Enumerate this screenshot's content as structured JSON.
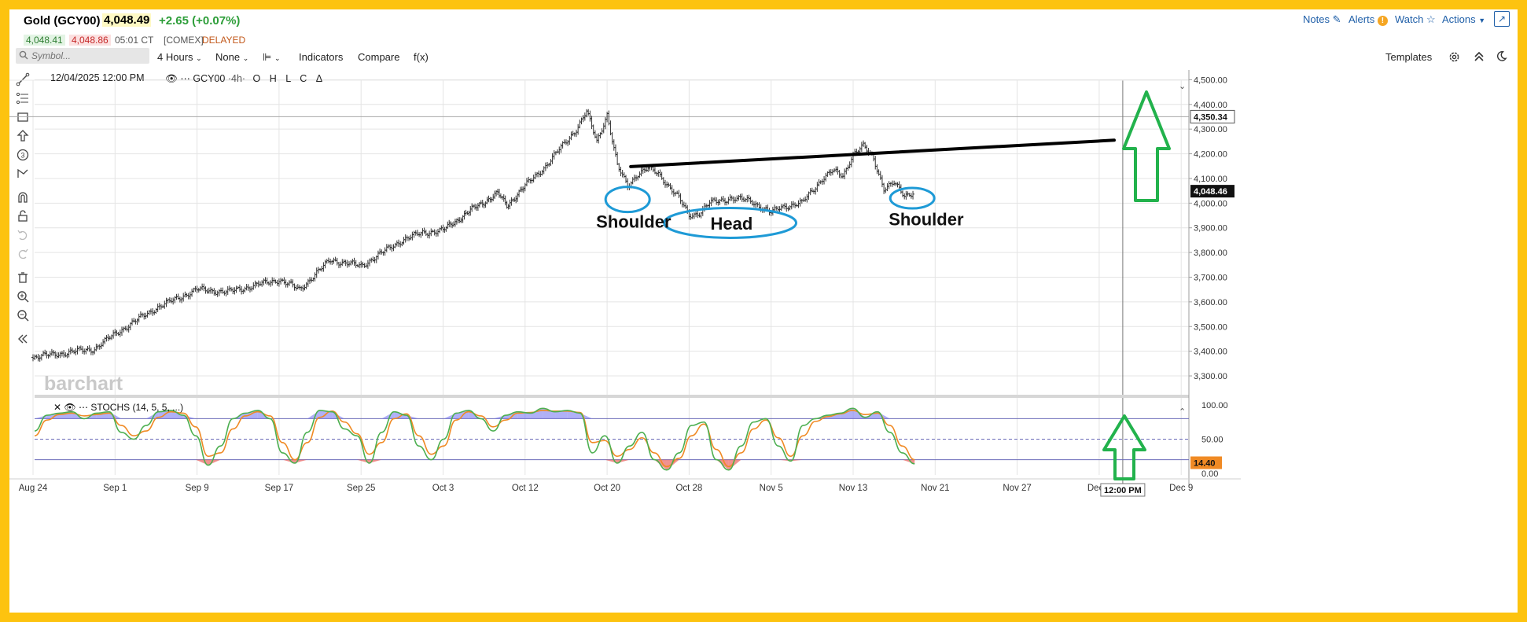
{
  "header": {
    "title": "Gold (GCY00)",
    "last": "4,048.49",
    "change": "+2.65 (+0.07%)",
    "bid": "4,048.41",
    "ask": "4,048.86",
    "time": "05:01 CT",
    "exchange": "[COMEX]",
    "status": "DELAYED",
    "nav": {
      "notes": "Notes",
      "alerts": "Alerts",
      "watch": "Watch",
      "actions": "Actions"
    }
  },
  "toolbar": {
    "symbol_placeholder": "Symbol...",
    "interval": "4 Hours",
    "study": "None",
    "indicators": "Indicators",
    "compare": "Compare",
    "fx": "f(x)",
    "templates": "Templates"
  },
  "legend": {
    "datetime": "12/04/2025 12:00 PM",
    "symbol": "GCY00",
    "interval": "·4h·",
    "ohlc": [
      "O",
      "H",
      "L",
      "C",
      "Δ"
    ]
  },
  "watermark": "barchart",
  "stoch": {
    "label": "STOCHS (14, 5, 5, ...)"
  },
  "annotations": {
    "left_shoulder": "Shoulder",
    "head": "Head",
    "right_shoulder": "Shoulder"
  },
  "colors": {
    "frame": "#fdc30f",
    "link": "#1f5fa8",
    "up": "#2e9e3a",
    "down": "#c62828",
    "ellipse": "#1e9ad6",
    "arrow": "#22b24c",
    "neckline": "#000000",
    "stoch_k": "#4caf50",
    "stoch_d": "#f08a24",
    "stoch_fill_hi": "#6f6ff0",
    "stoch_fill_lo": "#e53935"
  },
  "chart_data": [
    {
      "type": "candlestick",
      "title": "Gold (GCY00) 4h",
      "xlabel": "",
      "ylabel": "",
      "ylim": [
        3230,
        4530
      ],
      "x_ticks": [
        "Aug 24",
        "Sep 1",
        "Sep 9",
        "Sep 17",
        "Sep 25",
        "Oct 3",
        "Oct 12",
        "Oct 20",
        "Oct 28",
        "Nov 5",
        "Nov 13",
        "Nov 21",
        "Nov 27",
        "Dec 3",
        "Dec 9"
      ],
      "y_ticks": [
        "3,300.00",
        "3,400.00",
        "3,500.00",
        "3,600.00",
        "3,700.00",
        "3,800.00",
        "3,900.00",
        "4,000.00",
        "4,100.00",
        "4,200.00",
        "4,300.00",
        "4,400.00",
        "4,500.00"
      ],
      "price_markers": [
        {
          "label": "4,350.34",
          "value": 4350.34
        },
        {
          "label": "4,048.46",
          "value": 4048.46
        }
      ],
      "crosshair_label": "12:00 PM",
      "close_path": [
        {
          "x": "Aug 24",
          "y": 3375
        },
        {
          "x": "Aug 30",
          "y": 3410
        },
        {
          "x": "Sep 1",
          "y": 3470
        },
        {
          "x": "Sep 5",
          "y": 3575
        },
        {
          "x": "Sep 9",
          "y": 3650
        },
        {
          "x": "Sep 12",
          "y": 3640
        },
        {
          "x": "Sep 17",
          "y": 3690
        },
        {
          "x": "Sep 19",
          "y": 3650
        },
        {
          "x": "Sep 22",
          "y": 3770
        },
        {
          "x": "Sep 25",
          "y": 3745
        },
        {
          "x": "Sep 29",
          "y": 3850
        },
        {
          "x": "Oct 1",
          "y": 3880
        },
        {
          "x": "Oct 3",
          "y": 3890
        },
        {
          "x": "Oct 6",
          "y": 3970
        },
        {
          "x": "Oct 9",
          "y": 4040
        },
        {
          "x": "Oct 10",
          "y": 3990
        },
        {
          "x": "Oct 14",
          "y": 4150
        },
        {
          "x": "Oct 17",
          "y": 4300
        },
        {
          "x": "Oct 18",
          "y": 4370
        },
        {
          "x": "Oct 19",
          "y": 4250
        },
        {
          "x": "Oct 20",
          "y": 4360
        },
        {
          "x": "Oct 21",
          "y": 4150
        },
        {
          "x": "Oct 22",
          "y": 4070
        },
        {
          "x": "Oct 23",
          "y": 4120
        },
        {
          "x": "Oct 24",
          "y": 4140
        },
        {
          "x": "Oct 25",
          "y": 4120
        },
        {
          "x": "Oct 27",
          "y": 4020
        },
        {
          "x": "Oct 28",
          "y": 3950
        },
        {
          "x": "Oct 29",
          "y": 3960
        },
        {
          "x": "Oct 30",
          "y": 4000
        },
        {
          "x": "Nov 1",
          "y": 4020
        },
        {
          "x": "Nov 3",
          "y": 4010
        },
        {
          "x": "Nov 5",
          "y": 3960
        },
        {
          "x": "Nov 6",
          "y": 3985
        },
        {
          "x": "Nov 8",
          "y": 4000
        },
        {
          "x": "Nov 10",
          "y": 4100
        },
        {
          "x": "Nov 11",
          "y": 4130
        },
        {
          "x": "Nov 12",
          "y": 4110
        },
        {
          "x": "Nov 13",
          "y": 4200
        },
        {
          "x": "Nov 14",
          "y": 4230
        },
        {
          "x": "Nov 15",
          "y": 4180
        },
        {
          "x": "Nov 16",
          "y": 4060
        },
        {
          "x": "Nov 17",
          "y": 4080
        },
        {
          "x": "Nov 18",
          "y": 4030
        },
        {
          "x": "Nov 19",
          "y": 4048
        }
      ]
    },
    {
      "type": "line",
      "title": "STOCHS (14, 5, 5, ...)",
      "ylim": [
        0,
        100
      ],
      "y_ticks": [
        "100.00",
        "50.00",
        "0.00"
      ],
      "reference_lines": [
        80,
        50,
        20
      ],
      "last_value_label": "14.40",
      "series": [
        {
          "name": "%K",
          "values": [
            62,
            85,
            88,
            90,
            80,
            88,
            90,
            60,
            50,
            70,
            90,
            92,
            85,
            55,
            12,
            40,
            80,
            88,
            92,
            80,
            30,
            15,
            60,
            92,
            90,
            65,
            55,
            15,
            60,
            90,
            85,
            40,
            20,
            50,
            88,
            92,
            80,
            62,
            85,
            90,
            88,
            95,
            90,
            92,
            88,
            30,
            55,
            15,
            40,
            60,
            20,
            5,
            30,
            70,
            75,
            20,
            5,
            40,
            75,
            80,
            40,
            18,
            70,
            80,
            85,
            88,
            95,
            82,
            90,
            60,
            30,
            14
          ]
        },
        {
          "name": "%D",
          "values": [
            55,
            78,
            86,
            88,
            84,
            86,
            88,
            70,
            55,
            62,
            82,
            90,
            88,
            68,
            25,
            30,
            65,
            84,
            90,
            84,
            45,
            20,
            45,
            82,
            91,
            75,
            58,
            28,
            45,
            80,
            87,
            55,
            28,
            40,
            78,
            90,
            84,
            68,
            78,
            88,
            89,
            92,
            91,
            91,
            89,
            45,
            48,
            25,
            35,
            52,
            30,
            10,
            22,
            55,
            72,
            35,
            10,
            30,
            65,
            78,
            52,
            25,
            55,
            76,
            83,
            87,
            92,
            86,
            88,
            70,
            40,
            20
          ]
        }
      ]
    }
  ]
}
